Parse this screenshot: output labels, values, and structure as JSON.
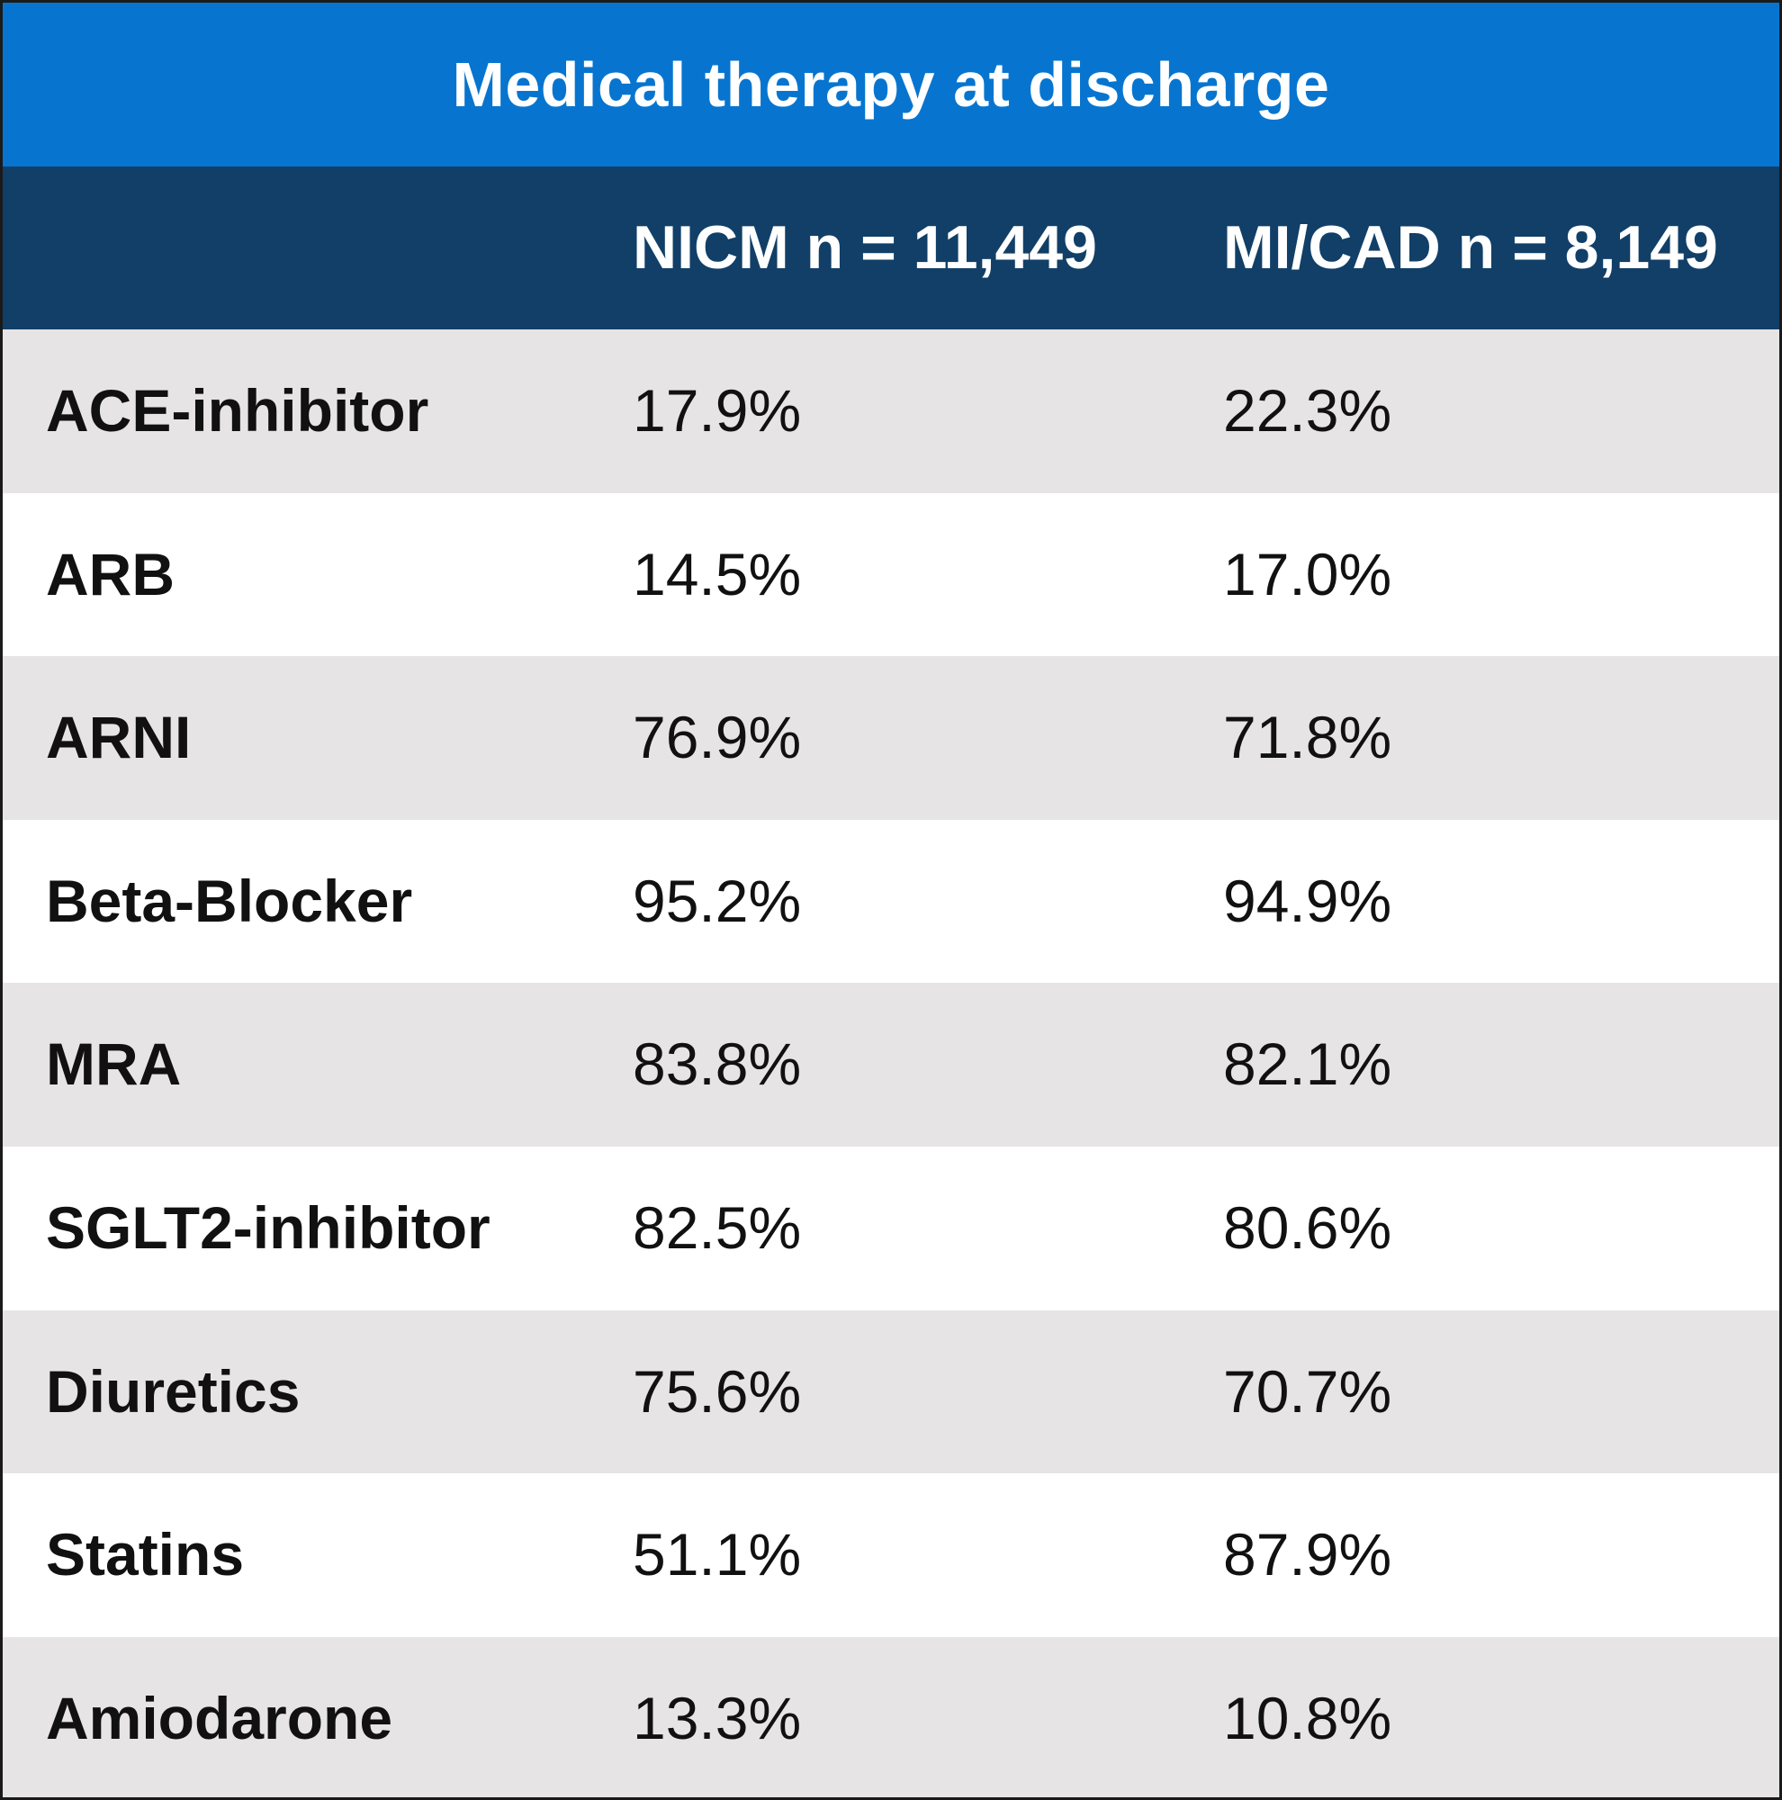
{
  "chart_data": {
    "type": "table",
    "title": "Medical therapy at discharge",
    "columns": [
      "",
      "NICM n = 11,449",
      "MI/CAD n = 8,149"
    ],
    "rows": [
      {
        "label": "ACE-inhibitor",
        "nicm": "17.9%",
        "micad": "22.3%"
      },
      {
        "label": "ARB",
        "nicm": "14.5%",
        "micad": "17.0%"
      },
      {
        "label": "ARNI",
        "nicm": "76.9%",
        "micad": "71.8%"
      },
      {
        "label": "Beta-Blocker",
        "nicm": "95.2%",
        "micad": "94.9%"
      },
      {
        "label": "MRA",
        "nicm": "83.8%",
        "micad": "82.1%"
      },
      {
        "label": "SGLT2-inhibitor",
        "nicm": "82.5%",
        "micad": "80.6%"
      },
      {
        "label": "Diuretics",
        "nicm": "75.6%",
        "micad": "70.7%"
      },
      {
        "label": "Statins",
        "nicm": "51.1%",
        "micad": "87.9%"
      },
      {
        "label": "Amiodarone",
        "nicm": "13.3%",
        "micad": "10.8%"
      }
    ]
  },
  "colors": {
    "title_bg": "#0775cf",
    "header_bg": "#113f67",
    "row_shaded": "#e6e4e5",
    "row_plain": "#ffffff",
    "text": "#111111"
  }
}
